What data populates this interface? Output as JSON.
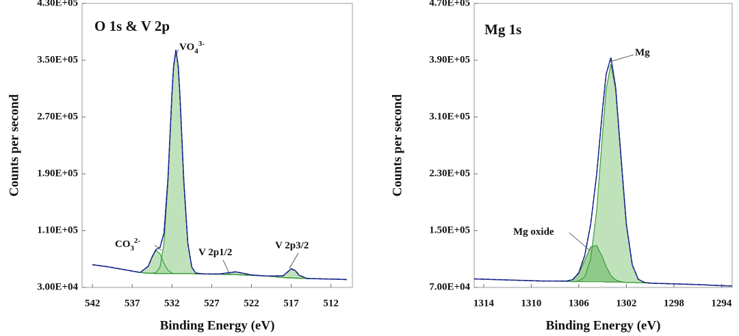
{
  "chart_data": [
    {
      "type": "line",
      "title": "O 1s & V 2p",
      "xlabel": "Binding Energy (eV)",
      "ylabel": "Counts per second",
      "xlim": [
        543.3,
        509.3
      ],
      "xticks": [
        542,
        537,
        532,
        527,
        522,
        517,
        512
      ],
      "ylim": [
        30000,
        430000
      ],
      "yticks": [
        {
          "value": 30000,
          "label": "3.00E+04"
        },
        {
          "value": 110000,
          "label": "1.10E+05"
        },
        {
          "value": 190000,
          "label": "1.90E+05"
        },
        {
          "value": 270000,
          "label": "2.70E+05"
        },
        {
          "value": 350000,
          "label": "3.50E+05"
        },
        {
          "value": 430000,
          "label": "4.30E+05"
        }
      ],
      "x": [
        542,
        540,
        538,
        536,
        535,
        534.5,
        534,
        533.5,
        533,
        532.5,
        532,
        531.8,
        531.5,
        531.2,
        531,
        530.5,
        530,
        529.5,
        529,
        528,
        526,
        525,
        524,
        523,
        522,
        520,
        518,
        517.5,
        517,
        516.5,
        516,
        515,
        513,
        511,
        510
      ],
      "series": [
        {
          "color": "#3c9a3c",
          "values": [
            62000,
            59000,
            55000,
            51000,
            50000,
            50000,
            49500,
            49500,
            49500,
            49500,
            49500,
            49500,
            49500,
            49500,
            49500,
            49500,
            49500,
            49500,
            49000,
            49000,
            48500,
            48000,
            48000,
            47500,
            47000,
            46000,
            44000,
            43500,
            43500,
            43000,
            43000,
            42500,
            42000,
            41500,
            41000
          ]
        },
        {
          "color": "#3c9a3c",
          "fill": "#a9d8a4",
          "values": [
            62000,
            59000,
            55000,
            51000,
            50000,
            50100,
            50700,
            58400,
            92100,
            178500,
            301500,
            340500,
            364500,
            340500,
            301500,
            178500,
            92100,
            58400,
            50200,
            49000,
            48500,
            48000,
            48000,
            47500,
            47000,
            46000,
            44000,
            43500,
            43500,
            43000,
            43000,
            42500,
            42000,
            41500,
            41000
          ]
        },
        {
          "color": "#3c9a3c",
          "fill": "#a9d8a4",
          "values": [
            62000,
            59000,
            55000,
            51000,
            59600,
            72800,
            82200,
            77500,
            63900,
            54000,
            50300,
            49500,
            49500,
            49500,
            49500,
            49500,
            49500,
            49500,
            49000,
            49000,
            48500,
            48000,
            48000,
            47500,
            47000,
            46000,
            44000,
            43500,
            43500,
            43000,
            43000,
            42500,
            42000,
            41500,
            41000
          ]
        },
        {
          "color": "#3c9a3c",
          "fill": "#a9d8a4",
          "values": [
            62000,
            59000,
            55000,
            51000,
            50000,
            50000,
            49500,
            49500,
            49500,
            49500,
            49500,
            49500,
            49500,
            49500,
            49500,
            49500,
            49500,
            49500,
            49000,
            49000,
            49000,
            50400,
            52000,
            49900,
            47500,
            46000,
            44000,
            43500,
            43500,
            43000,
            43000,
            42500,
            42000,
            41500,
            41000
          ]
        },
        {
          "color": "#3c9a3c",
          "fill": "#a9d8a4",
          "values": [
            62000,
            59000,
            55000,
            51000,
            50000,
            50000,
            49500,
            49500,
            49500,
            49500,
            49500,
            49500,
            49500,
            49500,
            49500,
            49500,
            49500,
            49500,
            49000,
            49000,
            48500,
            48000,
            48000,
            47500,
            47000,
            46000,
            46400,
            51400,
            56300,
            53900,
            47200,
            42600,
            42000,
            41500,
            41000
          ]
        },
        {
          "color": "#2233cc",
          "dash_color": "#1b1b3a",
          "values": [
            62000,
            59000,
            55000,
            51000,
            59600,
            72900,
            83400,
            86400,
            106500,
            183000,
            302300,
            340500,
            364500,
            340500,
            301500,
            178500,
            92100,
            58400,
            50200,
            49000,
            49000,
            50400,
            52000,
            49900,
            47500,
            46000,
            46400,
            51400,
            56300,
            53900,
            47200,
            42600,
            42000,
            41500,
            41000
          ]
        }
      ],
      "annotations": [
        {
          "text": "VO",
          "sub": "4",
          "sup": "3-"
        },
        {
          "text": "CO",
          "sub": "3",
          "sup": "2-"
        },
        {
          "text": "V 2p1/2"
        },
        {
          "text": "V 2p3/2"
        }
      ]
    },
    {
      "type": "line",
      "title": "Mg 1s",
      "xlabel": "Binding Energy (eV)",
      "ylabel": "Counts per second",
      "xlim": [
        1314.8,
        1293.1
      ],
      "xticks": [
        1314,
        1310,
        1306,
        1302,
        1298,
        1294
      ],
      "ylim": [
        70000,
        470000
      ],
      "yticks": [
        {
          "value": 70000,
          "label": "7.00E+04"
        },
        {
          "value": 150000,
          "label": "1.50E+05"
        },
        {
          "value": 230000,
          "label": "2.30E+05"
        },
        {
          "value": 310000,
          "label": "3.10E+05"
        },
        {
          "value": 390000,
          "label": "3.90E+05"
        },
        {
          "value": 470000,
          "label": "4.70E+05"
        }
      ],
      "x": [
        1314.8,
        1313,
        1311,
        1309,
        1307,
        1306.5,
        1306,
        1305.5,
        1305,
        1304.5,
        1304,
        1303.7,
        1303.3,
        1302.9,
        1302.5,
        1302,
        1301.5,
        1301,
        1300.5,
        1300,
        1298,
        1296,
        1294,
        1293.1
      ],
      "series": [
        {
          "color": "#3c9a3c",
          "values": [
            82000,
            81000,
            80000,
            79000,
            78500,
            78000,
            78000,
            78000,
            78000,
            78000,
            78000,
            77500,
            77500,
            77500,
            77500,
            77000,
            77000,
            76500,
            76500,
            76000,
            75000,
            74000,
            72500,
            72000
          ]
        },
        {
          "color": "#3c9a3c",
          "fill": "#a9d8a4",
          "values": [
            82000,
            81000,
            80000,
            79000,
            78500,
            78000,
            79000,
            85000,
            110000,
            177800,
            287000,
            348500,
            384500,
            348500,
            263500,
            159000,
            101600,
            81500,
            77200,
            76000,
            75000,
            74000,
            72500,
            72000
          ]
        },
        {
          "color": "#3c9a3c",
          "fill": "#7fc17a",
          "values": [
            82000,
            81000,
            80000,
            79000,
            79000,
            81000,
            89800,
            108000,
            127000,
            129000,
            112400,
            99300,
            86700,
            80500,
            78200,
            77000,
            77000,
            76500,
            76500,
            76000,
            75000,
            74000,
            72500,
            72000
          ]
        },
        {
          "color": "#2233cc",
          "dash_color": "#1b1b3a",
          "values": [
            82000,
            81000,
            80000,
            79000,
            79000,
            81000,
            90800,
            115000,
            159000,
            228800,
            321400,
            370300,
            393700,
            351500,
            264200,
            159000,
            101600,
            81500,
            77200,
            76000,
            75000,
            74000,
            72500,
            72000
          ]
        }
      ],
      "annotations": [
        {
          "text": "Mg"
        },
        {
          "text": "Mg oxide"
        }
      ]
    }
  ]
}
